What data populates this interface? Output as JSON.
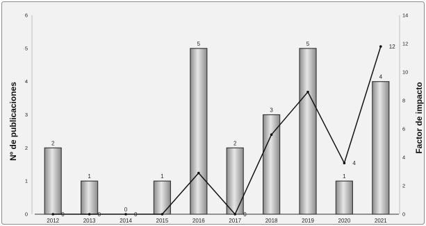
{
  "chart_data": {
    "type": "bar",
    "title": "",
    "xlabel": "",
    "ylabel": "Nº de publicaciones",
    "y2label": "Factor de impacto",
    "categories": [
      "2012",
      "2013",
      "2014",
      "2015",
      "2016",
      "2017",
      "2018",
      "2019",
      "2020",
      "2021"
    ],
    "ylim": [
      0,
      6
    ],
    "yticks": [
      0,
      1,
      2,
      3,
      4,
      5,
      6
    ],
    "y2lim": [
      0,
      14
    ],
    "y2ticks": [
      0,
      2,
      4,
      6,
      8,
      10,
      12,
      14
    ],
    "grid": false,
    "series": [
      {
        "type": "bar",
        "axis": "left",
        "values": [
          2,
          1,
          0,
          1,
          5,
          2,
          3,
          5,
          1,
          4
        ],
        "labels": [
          "2",
          "1",
          "0",
          "1",
          "5",
          "2",
          "3",
          "5",
          "1",
          "4"
        ]
      },
      {
        "type": "line",
        "axis": "right",
        "values": [
          0,
          0,
          0,
          0,
          2.9,
          0,
          5.6,
          8.6,
          3.6,
          11.8
        ],
        "labels": [
          "0",
          "0",
          "0",
          null,
          null,
          "0",
          null,
          null,
          "4",
          "12"
        ]
      }
    ]
  },
  "colors": {
    "background": "#f2f2f2",
    "frame": "#8a8a8a",
    "bar_fill_light": "#e6e6e6",
    "bar_fill_dark": "#8c8c8c",
    "bar_stroke": "#3a3a3a",
    "line": "#111111"
  }
}
